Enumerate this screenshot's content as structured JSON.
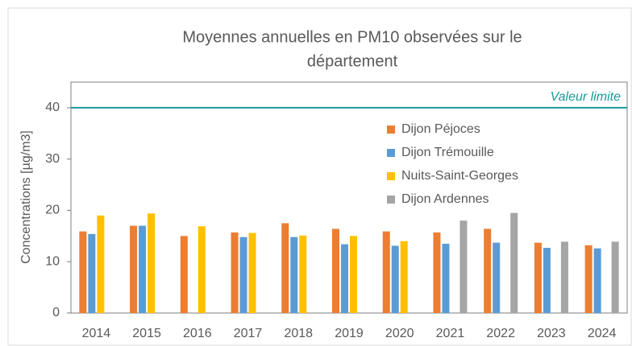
{
  "chart_data": {
    "type": "bar",
    "title": [
      "Moyennes annuelles en PM10 observées sur le",
      "département"
    ],
    "y_label": "Concentrations [µg/m3]",
    "categories": [
      "2014",
      "2015",
      "2016",
      "2017",
      "2018",
      "2019",
      "2020",
      "2021",
      "2022",
      "2023",
      "2024"
    ],
    "series": [
      {
        "name": "Dijon Péjoces",
        "color": "#ed7d31",
        "values": [
          15.9,
          17.0,
          15.0,
          15.7,
          17.5,
          16.4,
          15.9,
          15.7,
          16.4,
          13.7,
          13.2
        ]
      },
      {
        "name": "Dijon Trémouille",
        "color": "#5b9bd5",
        "values": [
          15.4,
          17.0,
          null,
          14.8,
          14.8,
          13.4,
          13.1,
          13.5,
          13.7,
          12.7,
          12.6
        ]
      },
      {
        "name": "Nuits-Saint-Georges",
        "color": "#ffc000",
        "values": [
          19.0,
          19.4,
          16.9,
          15.6,
          15.1,
          15.0,
          14.0,
          null,
          null,
          null,
          null
        ]
      },
      {
        "name": "Dijon Ardennes",
        "color": "#a5a5a5",
        "values": [
          null,
          null,
          null,
          null,
          null,
          null,
          null,
          18.0,
          19.5,
          13.9,
          13.9
        ]
      }
    ],
    "reference_line": {
      "value": 40,
      "label": "Valeur limite",
      "color": "#1a9a9a"
    },
    "ylim": [
      0,
      45
    ],
    "yticks": [
      0,
      10,
      20,
      30,
      40
    ],
    "legend": "upper-right"
  }
}
